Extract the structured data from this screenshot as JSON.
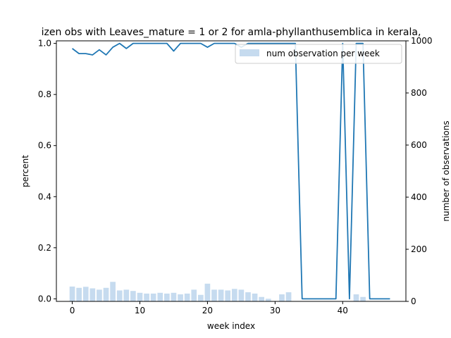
{
  "chart_data": {
    "type": "line+bar",
    "title": "izen obs with Leaves_mature = 1 or 2 for amla-phyllanthusemblica in kerala,",
    "xlabel": "week index",
    "ylabel_left": "percent",
    "ylabel_right": "number of observations",
    "xlim": [
      -2.35,
      49.35
    ],
    "ylim_left": [
      -0.01,
      1.01
    ],
    "ylim_right": [
      0,
      1000
    ],
    "x_ticks": [
      0,
      10,
      20,
      30,
      40
    ],
    "y_left_ticks": [
      "0.0",
      "0.2",
      "0.4",
      "0.6",
      "0.8",
      "1.0"
    ],
    "y_left_tick_values": [
      0,
      0.2,
      0.4,
      0.6,
      0.8,
      1.0
    ],
    "y_right_ticks": [
      0,
      200,
      400,
      600,
      800,
      1000
    ],
    "legend": {
      "label": "num observation per week",
      "position": "upper right"
    },
    "grid": false,
    "colors": {
      "line": "#1f77b4",
      "bars": "#c6dbef"
    },
    "series": [
      {
        "name": "percent",
        "axis": "left",
        "x": [
          0,
          1,
          2,
          3,
          4,
          5,
          6,
          7,
          8,
          9,
          10,
          11,
          12,
          13,
          14,
          15,
          16,
          17,
          18,
          19,
          20,
          21,
          22,
          23,
          24,
          25,
          26,
          27,
          28,
          29,
          30,
          31,
          32,
          33,
          34,
          35,
          36,
          37,
          38,
          39,
          40,
          41,
          42,
          43,
          44,
          45,
          46,
          47
        ],
        "values": [
          0.98,
          0.96,
          0.96,
          0.955,
          0.975,
          0.955,
          0.985,
          1.0,
          0.98,
          1.0,
          1.0,
          1.0,
          1.0,
          1.0,
          1.0,
          0.97,
          1.0,
          1.0,
          1.0,
          1.0,
          0.985,
          1.0,
          1.0,
          1.0,
          1.0,
          0.985,
          1.0,
          1.0,
          1.0,
          1.0,
          1.0,
          1.0,
          1.0,
          1.0,
          0.0,
          0.0,
          0.0,
          0.0,
          0.0,
          0.0,
          1.0,
          0.0,
          1.0,
          1.0,
          0.0,
          0.0,
          0.0,
          0.0
        ]
      },
      {
        "name": "num observation per week",
        "axis": "right",
        "x": [
          0,
          1,
          2,
          3,
          4,
          5,
          6,
          7,
          8,
          9,
          10,
          11,
          12,
          13,
          14,
          15,
          16,
          17,
          18,
          19,
          20,
          21,
          22,
          23,
          24,
          25,
          26,
          27,
          28,
          29,
          30,
          31,
          32,
          33,
          34,
          35,
          36,
          37,
          38,
          39,
          40,
          41,
          42,
          43,
          44,
          45,
          46,
          47
        ],
        "values": [
          57,
          52,
          56,
          50,
          45,
          52,
          75,
          42,
          45,
          40,
          33,
          30,
          30,
          33,
          30,
          33,
          27,
          30,
          45,
          25,
          68,
          45,
          45,
          42,
          48,
          45,
          35,
          30,
          17,
          10,
          0,
          27,
          35,
          0,
          0,
          0,
          0,
          0,
          0,
          0,
          0,
          0,
          27,
          17,
          0,
          0,
          0,
          0
        ]
      }
    ]
  }
}
